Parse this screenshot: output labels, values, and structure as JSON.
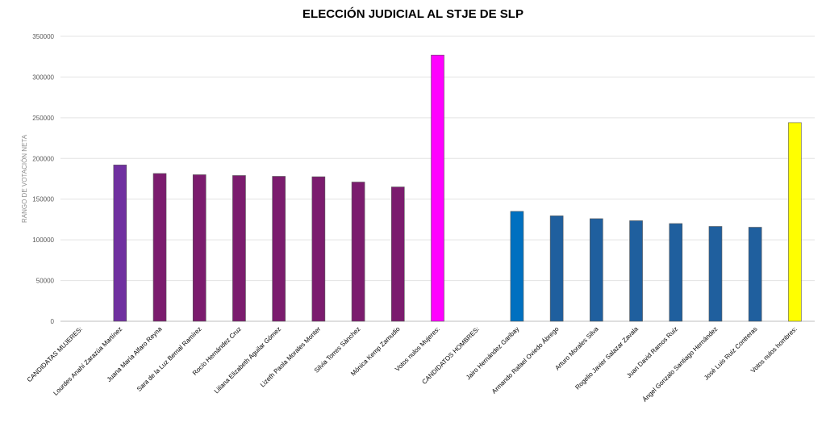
{
  "chart_data": {
    "type": "bar",
    "title": "ELECCIÓN JUDICIAL AL STJE DE SLP",
    "xlabel": "",
    "ylabel": "RANGO DE VOTACIÓN NETA",
    "ylim": [
      0,
      350000
    ],
    "yticks": [
      0,
      50000,
      100000,
      150000,
      200000,
      250000,
      300000,
      350000
    ],
    "grid": true,
    "categories": [
      "CANDIDATAS MUJERES:",
      "Lourdes Anahí Zarazúa Martínez",
      "Juana María Alfaro Reyna",
      "Sara de la Luz Bernal Ramírez",
      "Rocío Hernández Cruz",
      "Liliana Elizabeth Aguilar Gómez",
      "Lizeth Paola Morales Monter",
      "Silvia Torres Sánchez",
      "Mónica Kemp Zamudio",
      "Votos nulos Mujeres:",
      "CANDIDATOS HOMBRES:",
      "Jairo Hernández Garibay",
      "Armando Rafael Oviedo Ábrego",
      "Arturo Morales Silva",
      "Rogelio Javier Salazar Zavala",
      "Juan David Ramos Ruiz",
      "Ángel Gonzalo Santiago Hernández",
      "José Luis Ruiz Contreras",
      "Votos nulos hombres:"
    ],
    "values": [
      0,
      192000,
      181500,
      180000,
      179000,
      178000,
      177500,
      171000,
      165000,
      327000,
      0,
      135000,
      129500,
      126000,
      123500,
      120000,
      116500,
      115500,
      244000
    ],
    "colors": [
      "#7030a0",
      "#7030a0",
      "#7b1c6e",
      "#7b1c6e",
      "#7b1c6e",
      "#7b1c6e",
      "#7b1c6e",
      "#7b1c6e",
      "#7b1c6e",
      "#ff00ff",
      "#0070c0",
      "#0070c0",
      "#1f5f9e",
      "#1f5f9e",
      "#1f5f9e",
      "#1f5f9e",
      "#1f5f9e",
      "#1f5f9e",
      "#ffff00"
    ]
  }
}
